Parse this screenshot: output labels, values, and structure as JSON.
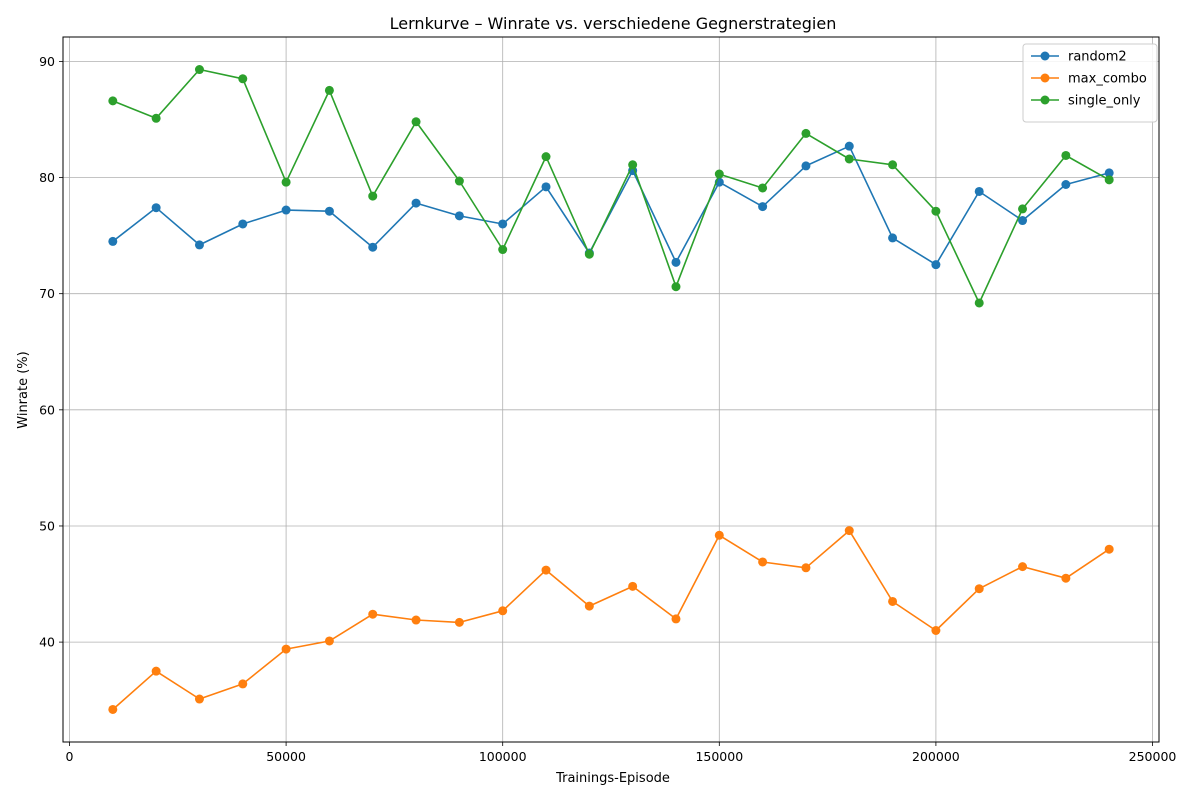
{
  "chart_data": {
    "type": "line",
    "title": "Lernkurve – Winrate vs. verschiedene Gegnerstrategien",
    "xlabel": "Trainings-Episode",
    "ylabel": "Winrate (%)",
    "xlim": [
      -1500,
      251500
    ],
    "ylim": [
      31.4,
      92.1
    ],
    "xticks": [
      0,
      50000,
      100000,
      150000,
      200000,
      250000
    ],
    "yticks": [
      40,
      50,
      60,
      70,
      80,
      90
    ],
    "grid": true,
    "legend_position": "upper right",
    "x": [
      10000,
      20000,
      30000,
      40000,
      50000,
      60000,
      70000,
      80000,
      90000,
      100000,
      110000,
      120000,
      130000,
      140000,
      150000,
      160000,
      170000,
      180000,
      190000,
      200000,
      210000,
      220000,
      230000,
      240000
    ],
    "series": [
      {
        "name": "random2",
        "color": "#1f77b4",
        "values": [
          74.5,
          77.4,
          74.2,
          76.0,
          77.2,
          77.1,
          74.0,
          77.8,
          76.7,
          76.0,
          79.2,
          73.5,
          80.6,
          72.7,
          79.6,
          77.5,
          81.0,
          82.7,
          74.8,
          72.5,
          78.8,
          76.3,
          79.4,
          80.4
        ]
      },
      {
        "name": "max_combo",
        "color": "#ff7f0e",
        "values": [
          34.2,
          37.5,
          35.1,
          36.4,
          39.4,
          40.1,
          42.4,
          41.9,
          41.7,
          42.7,
          46.2,
          43.1,
          44.8,
          42.0,
          49.2,
          46.9,
          46.4,
          49.6,
          43.5,
          41.0,
          44.6,
          46.5,
          45.5,
          48.0
        ]
      },
      {
        "name": "single_only",
        "color": "#2ca02c",
        "values": [
          86.6,
          85.1,
          89.3,
          88.5,
          79.6,
          87.5,
          78.4,
          84.8,
          79.7,
          73.8,
          81.8,
          73.4,
          81.1,
          70.6,
          80.3,
          79.1,
          83.8,
          81.6,
          81.1,
          77.1,
          69.2,
          77.3,
          81.9,
          79.8
        ]
      }
    ]
  }
}
